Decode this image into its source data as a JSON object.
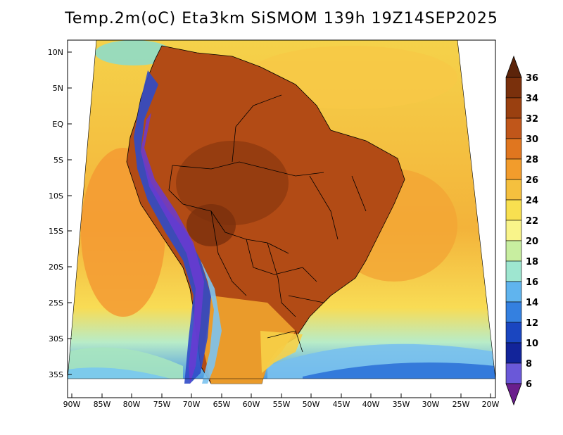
{
  "title": "Temp.2m(oC) Eta3km SiSMOM 139h 19Z14SEP2025",
  "map": {
    "lat_labels": [
      "10N",
      "5N",
      "EQ",
      "5S",
      "10S",
      "15S",
      "20S",
      "25S",
      "30S",
      "35S"
    ],
    "lon_labels": [
      "90W",
      "85W",
      "80W",
      "75W",
      "70W",
      "65W",
      "60W",
      "55W",
      "50W",
      "45W",
      "40W",
      "35W",
      "30W",
      "25W",
      "20W"
    ]
  },
  "colorbar": {
    "labels": [
      "36",
      "34",
      "32",
      "30",
      "28",
      "26",
      "24",
      "22",
      "20",
      "18",
      "16",
      "14",
      "12",
      "10",
      "8",
      "6"
    ],
    "colors": [
      "#6e2c0c",
      "#8c3a10",
      "#b04a14",
      "#d8661c",
      "#f08c28",
      "#f5b43a",
      "#f8dc50",
      "#fafa8c",
      "#d2f08c",
      "#a0e6b4",
      "#78c8f0",
      "#3c8ce6",
      "#1e50c8",
      "#1428a0",
      "#5a50d2",
      "#8c46c8",
      "#6a1e8c"
    ],
    "bottom_color": "#6a1e8c",
    "top_color": "#5c240a"
  }
}
